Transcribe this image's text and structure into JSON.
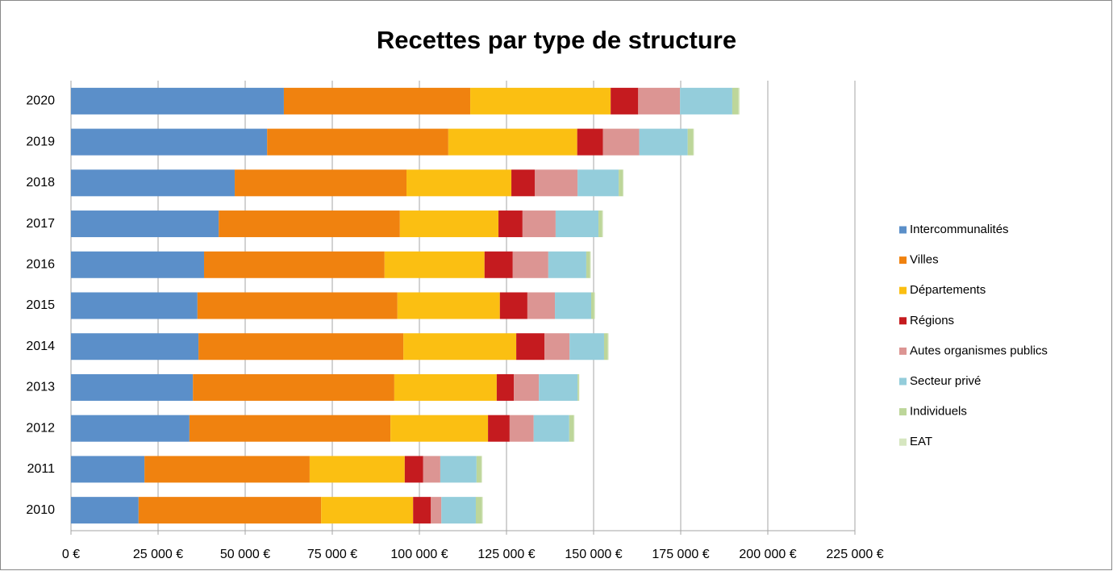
{
  "chart_data": {
    "type": "stacked-barh",
    "title": "Recettes par type de structure",
    "categories": [
      "2020",
      "2019",
      "2018",
      "2017",
      "2016",
      "2015",
      "2014",
      "2013",
      "2012",
      "2011",
      "2010"
    ],
    "series": [
      {
        "name": "Intercommunalités",
        "color": "#5b8fc9",
        "values": [
          61100,
          56300,
          47000,
          42400,
          38200,
          36300,
          36600,
          35000,
          34000,
          21100,
          19400
        ]
      },
      {
        "name": "Villes",
        "color": "#f0820f",
        "values": [
          53500,
          52000,
          49300,
          52000,
          51800,
          57400,
          58800,
          57800,
          57700,
          47400,
          52400
        ]
      },
      {
        "name": "Départements",
        "color": "#fbbf12",
        "values": [
          40300,
          37000,
          30100,
          28300,
          28700,
          29400,
          32400,
          29400,
          28000,
          27300,
          26400
        ]
      },
      {
        "name": "Régions",
        "color": "#c51b1f",
        "values": [
          7900,
          7400,
          6700,
          6900,
          8100,
          7900,
          8100,
          4900,
          6200,
          5300,
          5100
        ]
      },
      {
        "name": "Autes organismes publics",
        "color": "#dc9593",
        "values": [
          12000,
          10400,
          12300,
          9500,
          10200,
          7900,
          7200,
          7200,
          6900,
          4900,
          3000
        ]
      },
      {
        "name": "Secteur privé",
        "color": "#94cddb",
        "values": [
          15000,
          13900,
          11800,
          12300,
          10900,
          10400,
          9900,
          11100,
          10200,
          10400,
          9900
        ]
      },
      {
        "name": "Individuels",
        "color": "#bdd69a",
        "values": [
          1800,
          1600,
          1200,
          1100,
          1100,
          900,
          1100,
          400,
          1300,
          1400,
          1800
        ]
      },
      {
        "name": "EAT",
        "color": "#d6e6c0",
        "values": [
          300,
          200,
          200,
          200,
          200,
          200,
          200,
          100,
          200,
          200,
          200
        ]
      }
    ],
    "xlim": [
      0,
      225000
    ],
    "xticks": [
      {
        "value": 0,
        "label": "0 €"
      },
      {
        "value": 25000,
        "label": "25 000 €"
      },
      {
        "value": 50000,
        "label": "50 000 €"
      },
      {
        "value": 75000,
        "label": "75 000 €"
      },
      {
        "value": 100000,
        "label": "100 000 €"
      },
      {
        "value": 125000,
        "label": "125 000 €"
      },
      {
        "value": 150000,
        "label": "150 000 €"
      },
      {
        "value": 175000,
        "label": "175 000 €"
      },
      {
        "value": 200000,
        "label": "200 000 €"
      },
      {
        "value": 225000,
        "label": "225 000 €"
      }
    ],
    "grid": true,
    "legend": "right"
  }
}
